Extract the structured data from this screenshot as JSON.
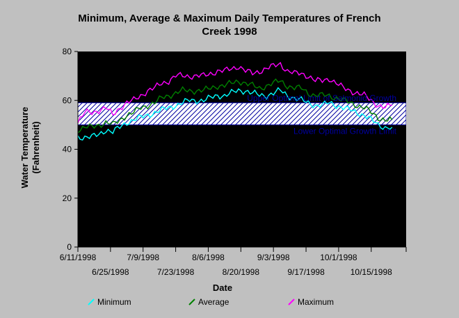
{
  "chart_data": {
    "type": "line",
    "title": "Minimum, Average & Maximum Daily  Temperatures of French Creek 1998",
    "title_lines": [
      "Minimum, Average & Maximum Daily  Temperatures of French",
      "Creek 1998"
    ],
    "xlabel": "Date",
    "ylabel": "Water Temperature (Fahrenheit)",
    "ylabel_lines": [
      "Water Temperature",
      "(Fahrenheit)"
    ],
    "ylim": [
      0,
      80
    ],
    "yticks": [
      "0",
      "20",
      "40",
      "60",
      "80"
    ],
    "xlim": [
      "1998-06-11",
      "1998-10-30"
    ],
    "xticks": [
      {
        "date": "1998-06-11",
        "label": "6/11/1998",
        "row": 1
      },
      {
        "date": "1998-06-25",
        "label": "6/25/1998",
        "row": 2
      },
      {
        "date": "1998-07-09",
        "label": "7/9/1998",
        "row": 1
      },
      {
        "date": "1998-07-23",
        "label": "7/23/1998",
        "row": 2
      },
      {
        "date": "1998-08-06",
        "label": "8/6/1998",
        "row": 1
      },
      {
        "date": "1998-08-20",
        "label": "8/20/1998",
        "row": 2
      },
      {
        "date": "1998-09-03",
        "label": "9/3/1998",
        "row": 1
      },
      {
        "date": "1998-09-17",
        "label": "9/17/1998",
        "row": 2
      },
      {
        "date": "1998-10-01",
        "label": "10/1/1998",
        "row": 1
      },
      {
        "date": "1998-10-15",
        "label": "10/15/1998",
        "row": 2
      }
    ],
    "grid": false,
    "legend_position": "bottom",
    "reference_band": {
      "lower": 50,
      "upper": 59,
      "upper_label": "Upper Optimal Limit of Salmonid Growth",
      "lower_label": "Lower Optimal Growth Limit",
      "color": "#0000a0"
    },
    "series": [
      {
        "name": "Minimum",
        "color": "#00ffff",
        "points": [
          [
            "1998-06-11",
            45
          ],
          [
            "1998-06-14",
            45
          ],
          [
            "1998-06-17",
            45
          ],
          [
            "1998-06-20",
            46
          ],
          [
            "1998-06-23",
            48
          ],
          [
            "1998-06-26",
            47
          ],
          [
            "1998-06-29",
            49
          ],
          [
            "1998-07-02",
            51
          ],
          [
            "1998-07-05",
            52
          ],
          [
            "1998-07-08",
            53
          ],
          [
            "1998-07-11",
            54
          ],
          [
            "1998-07-14",
            55
          ],
          [
            "1998-07-17",
            56
          ],
          [
            "1998-07-20",
            57
          ],
          [
            "1998-07-23",
            58
          ],
          [
            "1998-07-26",
            59
          ],
          [
            "1998-07-29",
            60
          ],
          [
            "1998-08-01",
            60
          ],
          [
            "1998-08-04",
            60
          ],
          [
            "1998-08-07",
            61
          ],
          [
            "1998-08-10",
            62
          ],
          [
            "1998-08-13",
            62
          ],
          [
            "1998-08-16",
            63
          ],
          [
            "1998-08-19",
            64
          ],
          [
            "1998-08-22",
            64
          ],
          [
            "1998-08-25",
            63
          ],
          [
            "1998-08-28",
            62
          ],
          [
            "1998-08-31",
            62
          ],
          [
            "1998-09-03",
            63
          ],
          [
            "1998-09-06",
            64
          ],
          [
            "1998-09-09",
            62
          ],
          [
            "1998-09-12",
            61
          ],
          [
            "1998-09-15",
            60
          ],
          [
            "1998-09-18",
            59
          ],
          [
            "1998-09-21",
            58
          ],
          [
            "1998-09-24",
            58
          ],
          [
            "1998-09-27",
            59
          ],
          [
            "1998-09-30",
            58
          ],
          [
            "1998-10-03",
            57
          ],
          [
            "1998-10-06",
            56
          ],
          [
            "1998-10-09",
            55
          ],
          [
            "1998-10-12",
            54
          ],
          [
            "1998-10-15",
            52
          ],
          [
            "1998-10-18",
            50
          ],
          [
            "1998-10-21",
            49
          ],
          [
            "1998-10-24",
            49
          ]
        ]
      },
      {
        "name": "Average",
        "color": "#008000",
        "points": [
          [
            "1998-06-11",
            48
          ],
          [
            "1998-06-14",
            49
          ],
          [
            "1998-06-17",
            49
          ],
          [
            "1998-06-20",
            50
          ],
          [
            "1998-06-23",
            51
          ],
          [
            "1998-06-26",
            50
          ],
          [
            "1998-06-29",
            52
          ],
          [
            "1998-07-02",
            54
          ],
          [
            "1998-07-05",
            55
          ],
          [
            "1998-07-08",
            57
          ],
          [
            "1998-07-11",
            58
          ],
          [
            "1998-07-14",
            59
          ],
          [
            "1998-07-17",
            61
          ],
          [
            "1998-07-20",
            62
          ],
          [
            "1998-07-23",
            63
          ],
          [
            "1998-07-26",
            64
          ],
          [
            "1998-07-29",
            64
          ],
          [
            "1998-08-01",
            64
          ],
          [
            "1998-08-04",
            64
          ],
          [
            "1998-08-07",
            65
          ],
          [
            "1998-08-10",
            66
          ],
          [
            "1998-08-13",
            66
          ],
          [
            "1998-08-16",
            67
          ],
          [
            "1998-08-19",
            68
          ],
          [
            "1998-08-22",
            67
          ],
          [
            "1998-08-25",
            66
          ],
          [
            "1998-08-28",
            65
          ],
          [
            "1998-08-31",
            66
          ],
          [
            "1998-09-03",
            67
          ],
          [
            "1998-09-06",
            68
          ],
          [
            "1998-09-09",
            66
          ],
          [
            "1998-09-12",
            65
          ],
          [
            "1998-09-15",
            65
          ],
          [
            "1998-09-18",
            63
          ],
          [
            "1998-09-21",
            62
          ],
          [
            "1998-09-24",
            62
          ],
          [
            "1998-09-27",
            62
          ],
          [
            "1998-09-30",
            61
          ],
          [
            "1998-10-03",
            60
          ],
          [
            "1998-10-06",
            59
          ],
          [
            "1998-10-09",
            58
          ],
          [
            "1998-10-12",
            57
          ],
          [
            "1998-10-15",
            55
          ],
          [
            "1998-10-18",
            53
          ],
          [
            "1998-10-21",
            52
          ],
          [
            "1998-10-24",
            52
          ]
        ]
      },
      {
        "name": "Maximum",
        "color": "#ff00ff",
        "points": [
          [
            "1998-06-11",
            51
          ],
          [
            "1998-06-14",
            55
          ],
          [
            "1998-06-17",
            55
          ],
          [
            "1998-06-20",
            56
          ],
          [
            "1998-06-23",
            57
          ],
          [
            "1998-06-26",
            54
          ],
          [
            "1998-06-29",
            57
          ],
          [
            "1998-07-02",
            59
          ],
          [
            "1998-07-05",
            60
          ],
          [
            "1998-07-08",
            62
          ],
          [
            "1998-07-11",
            64
          ],
          [
            "1998-07-14",
            65
          ],
          [
            "1998-07-17",
            67
          ],
          [
            "1998-07-20",
            68
          ],
          [
            "1998-07-23",
            70
          ],
          [
            "1998-07-26",
            70
          ],
          [
            "1998-07-29",
            70
          ],
          [
            "1998-08-01",
            70
          ],
          [
            "1998-08-04",
            70
          ],
          [
            "1998-08-07",
            71
          ],
          [
            "1998-08-10",
            72
          ],
          [
            "1998-08-13",
            72
          ],
          [
            "1998-08-16",
            73
          ],
          [
            "1998-08-19",
            74
          ],
          [
            "1998-08-22",
            72
          ],
          [
            "1998-08-25",
            71
          ],
          [
            "1998-08-28",
            72
          ],
          [
            "1998-08-31",
            73
          ],
          [
            "1998-09-03",
            74
          ],
          [
            "1998-09-06",
            75
          ],
          [
            "1998-09-09",
            72
          ],
          [
            "1998-09-12",
            71
          ],
          [
            "1998-09-15",
            71
          ],
          [
            "1998-09-18",
            70
          ],
          [
            "1998-09-21",
            68
          ],
          [
            "1998-09-24",
            68
          ],
          [
            "1998-09-27",
            69
          ],
          [
            "1998-09-30",
            67
          ],
          [
            "1998-10-03",
            65
          ],
          [
            "1998-10-06",
            64
          ],
          [
            "1998-10-09",
            63
          ],
          [
            "1998-10-12",
            62
          ],
          [
            "1998-10-15",
            60
          ],
          [
            "1998-10-18",
            58
          ],
          [
            "1998-10-21",
            57
          ],
          [
            "1998-10-24",
            58
          ]
        ]
      }
    ]
  }
}
